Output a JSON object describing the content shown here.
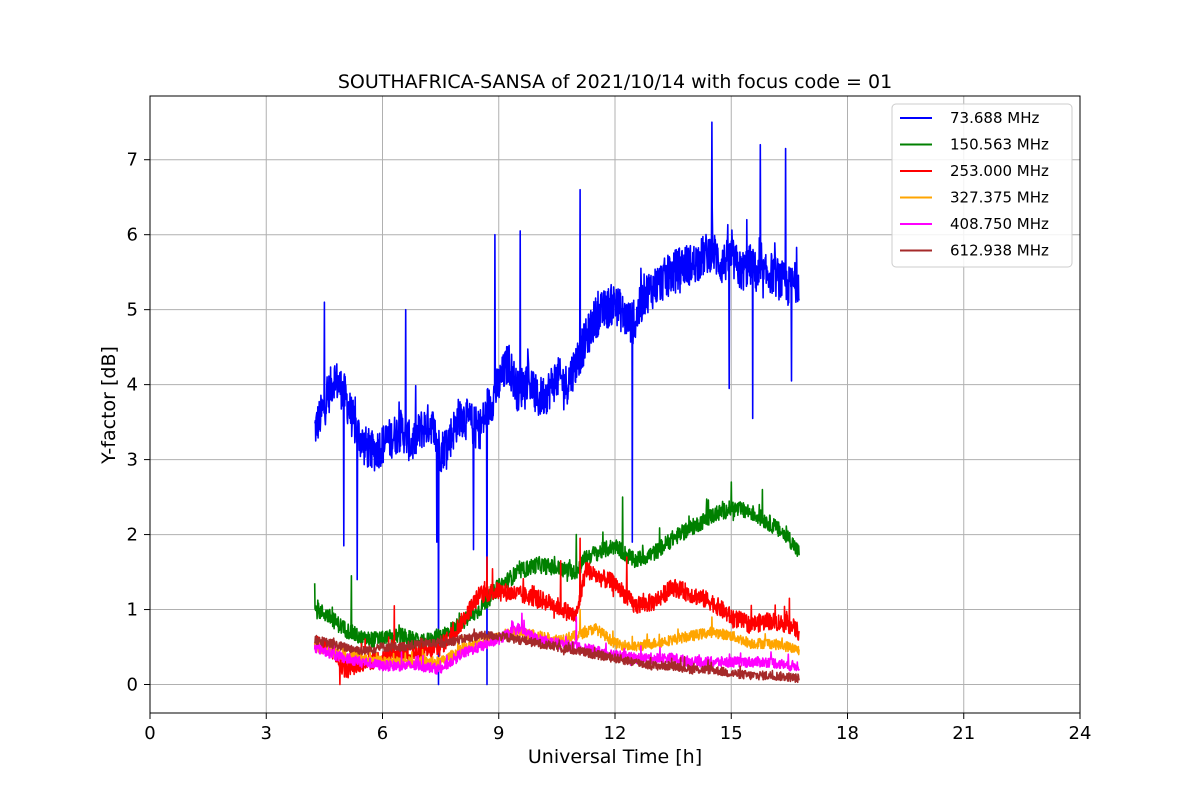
{
  "chart_data": {
    "type": "line",
    "title": "SOUTHAFRICA-SANSA of 2021/10/14 with focus code = 01",
    "xlabel": "Universal Time [h]",
    "ylabel": "Y-factor [dB]",
    "xlim": [
      0,
      24
    ],
    "ylim": [
      -0.38,
      7.85
    ],
    "xticks": [
      0,
      3,
      6,
      9,
      12,
      15,
      18,
      21,
      24
    ],
    "yticks": [
      0,
      1,
      2,
      3,
      4,
      5,
      6,
      7
    ],
    "grid": true,
    "legend_position": "top-right",
    "series": [
      {
        "name": " 73.688 MHz",
        "color": "#0000ff",
        "x": [
          4.25,
          4.5,
          4.75,
          5.0,
          5.25,
          5.5,
          5.75,
          6.0,
          6.25,
          6.5,
          6.75,
          7.0,
          7.25,
          7.5,
          7.75,
          8.0,
          8.25,
          8.5,
          8.75,
          9.0,
          9.25,
          9.5,
          9.75,
          10.0,
          10.25,
          10.5,
          10.75,
          11.0,
          11.25,
          11.5,
          11.75,
          12.0,
          12.25,
          12.5,
          12.75,
          13.0,
          13.25,
          13.5,
          13.75,
          14.0,
          14.25,
          14.5,
          14.75,
          15.0,
          15.25,
          15.5,
          15.75,
          16.0,
          16.25,
          16.5,
          16.75
        ],
        "y": [
          3.4,
          3.7,
          4.1,
          3.9,
          3.5,
          3.2,
          3.1,
          3.2,
          3.3,
          3.4,
          3.2,
          3.4,
          3.5,
          3.1,
          3.3,
          3.6,
          3.5,
          3.4,
          3.7,
          4.0,
          4.3,
          3.9,
          4.1,
          3.8,
          3.9,
          4.1,
          4.0,
          4.3,
          4.6,
          4.9,
          5.0,
          5.1,
          4.9,
          4.8,
          5.2,
          5.3,
          5.4,
          5.5,
          5.6,
          5.6,
          5.7,
          5.8,
          5.6,
          5.7,
          5.5,
          5.6,
          5.4,
          5.5,
          5.4,
          5.3,
          5.4
        ],
        "peaks": [
          [
            4.5,
            5.1
          ],
          [
            5.0,
            1.85
          ],
          [
            5.35,
            1.4
          ],
          [
            6.6,
            5.0
          ],
          [
            7.4,
            1.9
          ],
          [
            7.45,
            0.0
          ],
          [
            8.35,
            1.8
          ],
          [
            8.7,
            0.0
          ],
          [
            8.9,
            6.0
          ],
          [
            9.55,
            6.05
          ],
          [
            11.1,
            6.6
          ],
          [
            12.45,
            1.9
          ],
          [
            14.5,
            7.5
          ],
          [
            14.95,
            3.95
          ],
          [
            15.4,
            6.2
          ],
          [
            15.55,
            3.55
          ],
          [
            15.75,
            7.2
          ],
          [
            16.4,
            7.15
          ],
          [
            16.55,
            4.05
          ]
        ],
        "noise": 0.28
      },
      {
        "name": "150.563 MHz",
        "color": "#008000",
        "x": [
          4.25,
          4.5,
          5.0,
          5.5,
          6.0,
          6.5,
          7.0,
          7.5,
          8.0,
          8.5,
          9.0,
          9.5,
          10.0,
          10.5,
          11.0,
          11.25,
          11.5,
          12.0,
          12.5,
          13.0,
          13.5,
          14.0,
          14.5,
          15.0,
          15.5,
          16.0,
          16.5,
          16.75
        ],
        "y": [
          1.0,
          0.95,
          0.75,
          0.6,
          0.6,
          0.65,
          0.55,
          0.65,
          0.8,
          1.0,
          1.3,
          1.5,
          1.6,
          1.55,
          1.5,
          1.7,
          1.75,
          1.85,
          1.65,
          1.75,
          1.95,
          2.1,
          2.25,
          2.35,
          2.3,
          2.15,
          1.95,
          1.75
        ],
        "peaks": [
          [
            4.25,
            1.35
          ],
          [
            5.2,
            1.45
          ],
          [
            11.0,
            2.0
          ],
          [
            12.2,
            2.5
          ],
          [
            15.0,
            2.7
          ],
          [
            15.8,
            2.6
          ]
        ],
        "noise": 0.11
      },
      {
        "name": "253.000 MHz",
        "color": "#ff0000",
        "x": [
          4.25,
          4.75,
          5.0,
          5.5,
          6.0,
          6.5,
          7.0,
          7.5,
          8.0,
          8.5,
          9.0,
          9.5,
          10.0,
          10.5,
          11.0,
          11.25,
          11.5,
          12.0,
          12.5,
          13.0,
          13.5,
          14.0,
          14.5,
          15.0,
          15.5,
          16.0,
          16.5,
          16.75
        ],
        "y": [
          0.55,
          0.45,
          0.2,
          0.3,
          0.35,
          0.45,
          0.4,
          0.5,
          0.8,
          1.2,
          1.25,
          1.2,
          1.15,
          1.05,
          0.9,
          1.55,
          1.45,
          1.35,
          1.05,
          1.1,
          1.3,
          1.2,
          1.1,
          0.9,
          0.8,
          0.85,
          0.8,
          0.7
        ],
        "peaks": [
          [
            4.9,
            0.0
          ],
          [
            6.3,
            1.05
          ],
          [
            8.7,
            1.7
          ],
          [
            10.6,
            1.65
          ],
          [
            11.1,
            1.95
          ],
          [
            12.3,
            1.7
          ],
          [
            16.5,
            1.15
          ]
        ],
        "noise": 0.12
      },
      {
        "name": "327.375 MHz",
        "color": "#ffa500",
        "x": [
          4.25,
          5.0,
          6.0,
          7.0,
          7.5,
          8.0,
          8.5,
          9.0,
          9.5,
          10.0,
          10.5,
          11.0,
          11.5,
          12.0,
          12.5,
          13.0,
          13.5,
          14.0,
          14.5,
          15.0,
          15.5,
          16.0,
          16.5,
          16.75
        ],
        "y": [
          0.5,
          0.4,
          0.3,
          0.3,
          0.3,
          0.45,
          0.55,
          0.65,
          0.7,
          0.65,
          0.6,
          0.65,
          0.75,
          0.55,
          0.5,
          0.55,
          0.6,
          0.65,
          0.7,
          0.65,
          0.55,
          0.55,
          0.5,
          0.45
        ],
        "peaks": [
          [
            11.1,
            1.0
          ],
          [
            14.5,
            0.9
          ]
        ],
        "noise": 0.07
      },
      {
        "name": "408.750 MHz",
        "color": "#ff00ff",
        "x": [
          4.25,
          5.0,
          6.0,
          7.0,
          7.5,
          8.0,
          8.5,
          9.0,
          9.5,
          10.0,
          10.5,
          11.0,
          11.5,
          12.0,
          12.5,
          13.0,
          13.5,
          14.0,
          14.5,
          15.0,
          15.5,
          16.0,
          16.5,
          16.75
        ],
        "y": [
          0.5,
          0.35,
          0.25,
          0.25,
          0.2,
          0.4,
          0.5,
          0.6,
          0.75,
          0.6,
          0.55,
          0.5,
          0.45,
          0.4,
          0.35,
          0.35,
          0.35,
          0.3,
          0.3,
          0.3,
          0.3,
          0.3,
          0.25,
          0.25
        ],
        "peaks": [
          [
            9.6,
            0.95
          ],
          [
            11.0,
            0.9
          ]
        ],
        "noise": 0.07
      },
      {
        "name": "612.938 MHz",
        "color": "#a52a2a",
        "x": [
          4.25,
          5.0,
          5.5,
          6.0,
          6.5,
          7.0,
          7.5,
          8.0,
          8.5,
          9.0,
          9.5,
          10.0,
          10.5,
          11.0,
          11.5,
          12.0,
          12.5,
          13.0,
          13.5,
          14.0,
          14.5,
          15.0,
          15.5,
          16.0,
          16.5,
          16.75
        ],
        "y": [
          0.6,
          0.5,
          0.45,
          0.5,
          0.5,
          0.55,
          0.55,
          0.6,
          0.65,
          0.65,
          0.6,
          0.55,
          0.5,
          0.45,
          0.4,
          0.35,
          0.3,
          0.25,
          0.25,
          0.2,
          0.2,
          0.15,
          0.12,
          0.12,
          0.1,
          0.08
        ],
        "peaks": [],
        "noise": 0.06
      }
    ]
  }
}
